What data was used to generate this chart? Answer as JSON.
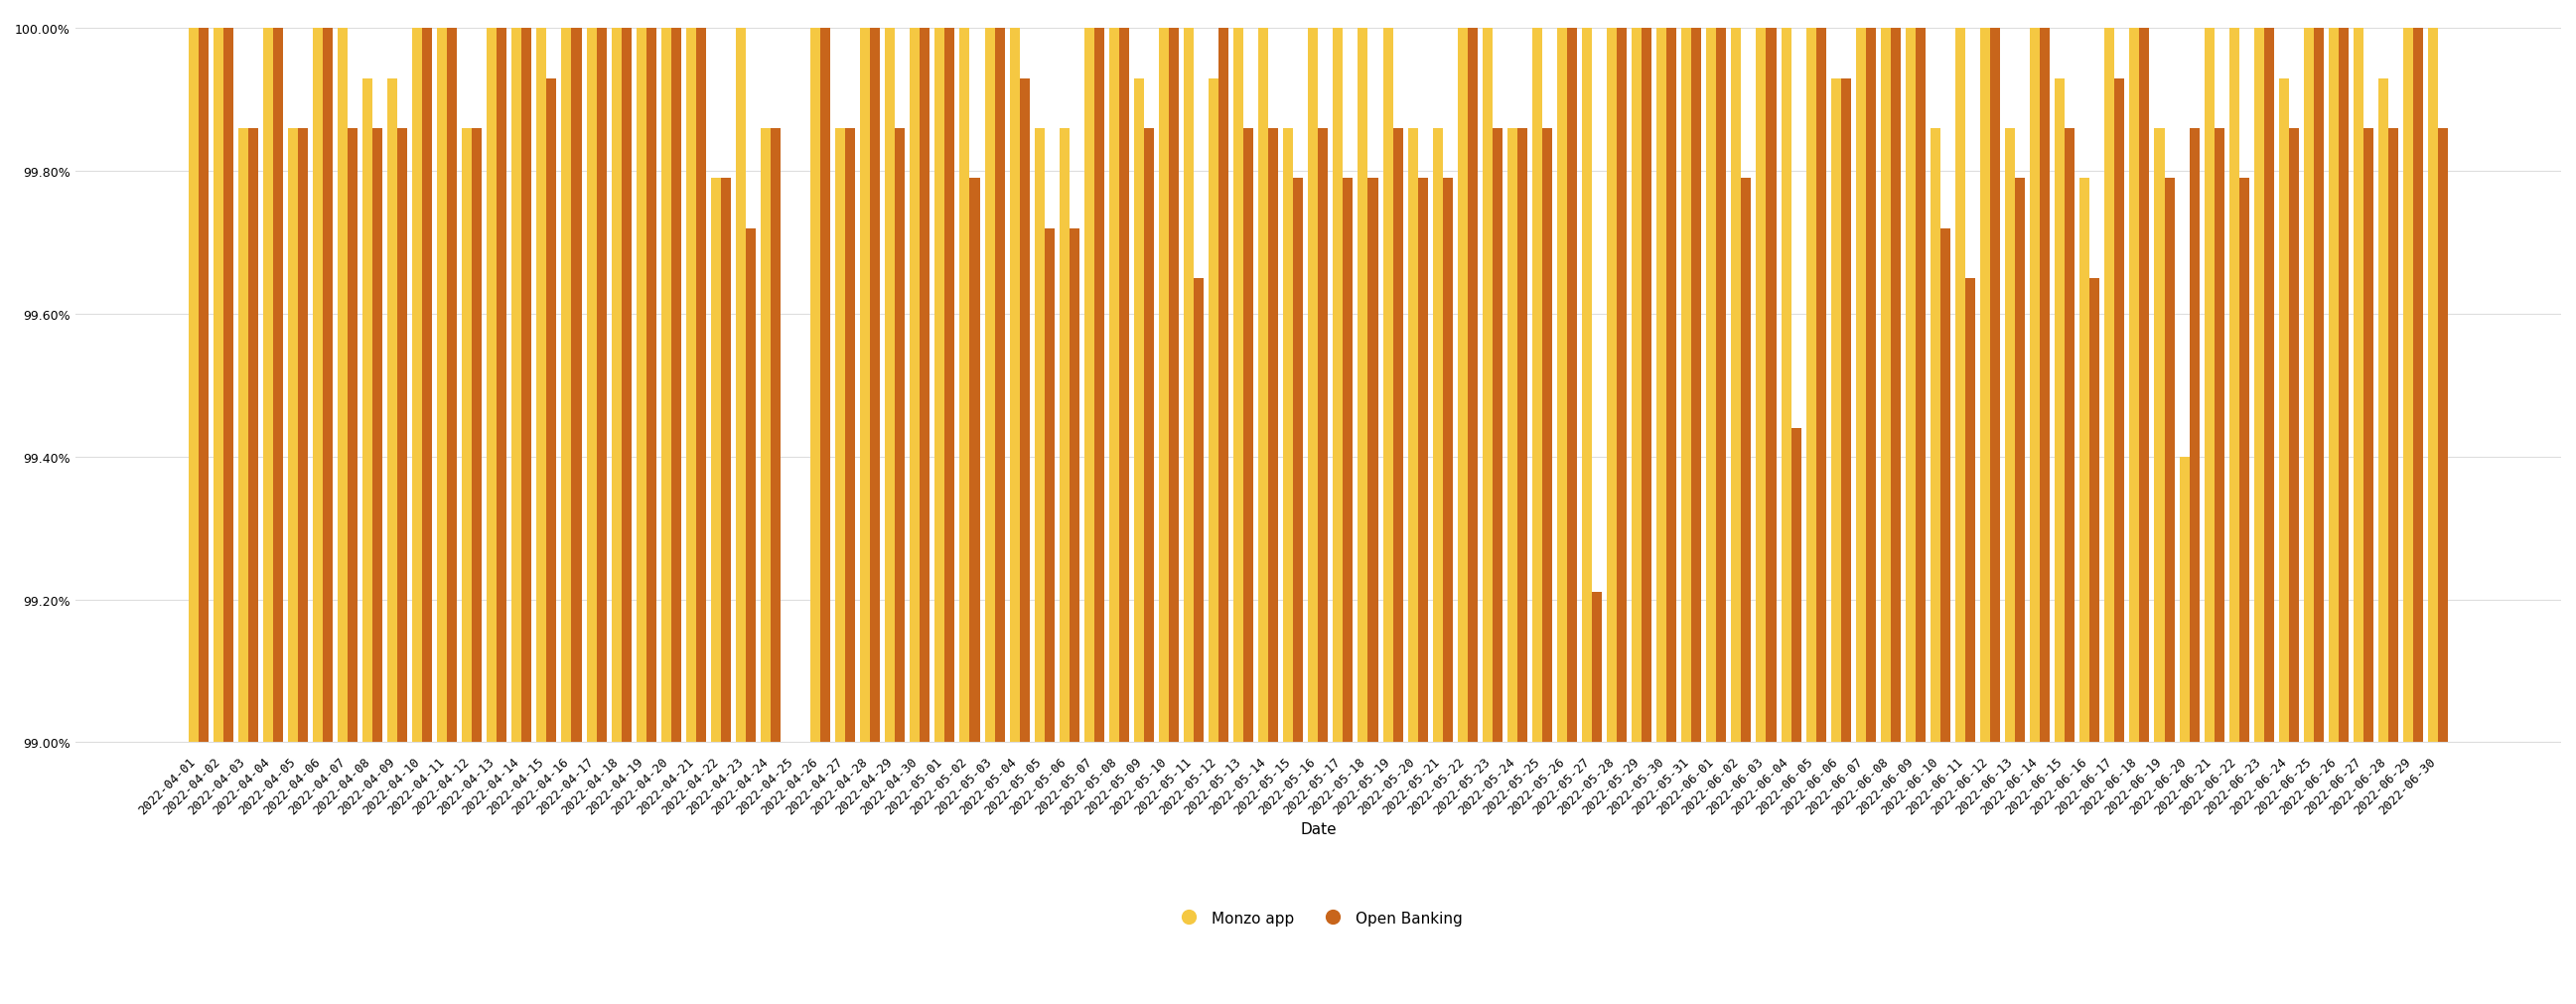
{
  "dates": [
    "2022-04-01",
    "2022-04-02",
    "2022-04-03",
    "2022-04-04",
    "2022-04-05",
    "2022-04-06",
    "2022-04-07",
    "2022-04-08",
    "2022-04-09",
    "2022-04-10",
    "2022-04-11",
    "2022-04-12",
    "2022-04-13",
    "2022-04-14",
    "2022-04-15",
    "2022-04-16",
    "2022-04-17",
    "2022-04-18",
    "2022-04-19",
    "2022-04-20",
    "2022-04-21",
    "2022-04-22",
    "2022-04-23",
    "2022-04-24",
    "2022-04-25",
    "2022-04-26",
    "2022-04-27",
    "2022-04-28",
    "2022-04-29",
    "2022-04-30",
    "2022-05-01",
    "2022-05-02",
    "2022-05-03",
    "2022-05-04",
    "2022-05-05",
    "2022-05-06",
    "2022-05-07",
    "2022-05-08",
    "2022-05-09",
    "2022-05-10",
    "2022-05-11",
    "2022-05-12",
    "2022-05-13",
    "2022-05-14",
    "2022-05-15",
    "2022-05-16",
    "2022-05-17",
    "2022-05-18",
    "2022-05-19",
    "2022-05-20",
    "2022-05-21",
    "2022-05-22",
    "2022-05-23",
    "2022-05-24",
    "2022-05-25",
    "2022-05-26",
    "2022-05-27",
    "2022-05-28",
    "2022-05-29",
    "2022-05-30",
    "2022-05-31",
    "2022-06-01",
    "2022-06-02",
    "2022-06-03",
    "2022-06-04",
    "2022-06-05",
    "2022-06-06",
    "2022-06-07",
    "2022-06-08",
    "2022-06-09",
    "2022-06-10",
    "2022-06-11",
    "2022-06-12",
    "2022-06-13",
    "2022-06-14",
    "2022-06-15",
    "2022-06-16",
    "2022-06-17",
    "2022-06-18",
    "2022-06-19",
    "2022-06-20",
    "2022-06-21",
    "2022-06-22",
    "2022-06-23",
    "2022-06-24",
    "2022-06-25",
    "2022-06-26",
    "2022-06-27",
    "2022-06-28",
    "2022-06-29",
    "2022-06-30"
  ],
  "monzo_app": [
    100.0,
    100.0,
    99.86,
    100.0,
    99.86,
    100.0,
    100.0,
    99.93,
    99.93,
    100.0,
    100.0,
    99.86,
    100.0,
    100.0,
    100.0,
    100.0,
    100.0,
    100.0,
    100.0,
    100.0,
    100.0,
    99.79,
    100.0,
    99.86,
    99.0,
    100.0,
    99.86,
    100.0,
    100.0,
    100.0,
    100.0,
    100.0,
    100.0,
    100.0,
    99.86,
    99.86,
    100.0,
    100.0,
    99.93,
    100.0,
    100.0,
    99.93,
    100.0,
    100.0,
    99.86,
    100.0,
    100.0,
    100.0,
    100.0,
    99.86,
    99.86,
    100.0,
    100.0,
    99.86,
    100.0,
    100.0,
    100.0,
    100.0,
    100.0,
    100.0,
    100.0,
    100.0,
    100.0,
    100.0,
    100.0,
    100.0,
    99.93,
    100.0,
    100.0,
    100.0,
    99.86,
    100.0,
    100.0,
    99.86,
    100.0,
    99.93,
    99.79,
    100.0,
    100.0,
    99.86,
    99.4,
    100.0,
    100.0,
    100.0,
    99.93,
    100.0,
    100.0,
    100.0,
    99.93,
    100.0,
    100.0
  ],
  "open_banking": [
    100.0,
    100.0,
    99.86,
    100.0,
    99.86,
    100.0,
    99.86,
    99.86,
    99.86,
    100.0,
    100.0,
    99.86,
    100.0,
    100.0,
    99.93,
    100.0,
    100.0,
    100.0,
    100.0,
    100.0,
    100.0,
    99.79,
    99.72,
    99.86,
    99.0,
    100.0,
    99.86,
    100.0,
    99.86,
    100.0,
    100.0,
    99.79,
    100.0,
    99.93,
    99.72,
    99.72,
    100.0,
    100.0,
    99.86,
    100.0,
    99.65,
    100.0,
    99.86,
    99.86,
    99.79,
    99.86,
    99.79,
    99.79,
    99.86,
    99.79,
    99.79,
    100.0,
    99.86,
    99.86,
    99.86,
    100.0,
    99.21,
    100.0,
    100.0,
    100.0,
    100.0,
    100.0,
    99.79,
    100.0,
    99.44,
    100.0,
    99.93,
    100.0,
    100.0,
    100.0,
    99.72,
    99.65,
    100.0,
    99.79,
    100.0,
    99.86,
    99.65,
    99.93,
    100.0,
    99.79,
    99.86,
    99.86,
    99.79,
    100.0,
    99.86,
    100.0,
    100.0,
    99.86,
    99.86,
    100.0,
    99.86
  ],
  "monzo_color": "#F5C842",
  "open_banking_color": "#C8651B",
  "ymin": 98.99,
  "ymax": 100.02,
  "ybase": 99.0,
  "yticks": [
    99.0,
    99.2,
    99.4,
    99.6,
    99.8,
    100.0
  ],
  "xlabel": "Date",
  "legend_monzo": "Monzo app",
  "legend_ob": "Open Banking",
  "background_color": "#ffffff",
  "grid_color": "#dddddd",
  "bar_width": 0.4,
  "tick_label_fontsize": 9,
  "axis_label_fontsize": 11,
  "legend_fontsize": 11
}
